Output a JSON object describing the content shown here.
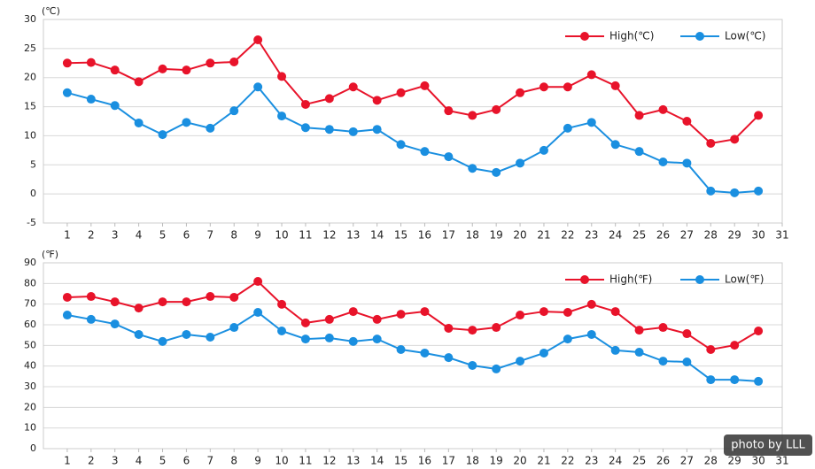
{
  "chart_data": [
    {
      "type": "line",
      "unit_label": "(℃)",
      "x": [
        1,
        2,
        3,
        4,
        5,
        6,
        7,
        8,
        9,
        10,
        11,
        12,
        13,
        14,
        15,
        16,
        17,
        18,
        19,
        20,
        21,
        22,
        23,
        24,
        25,
        26,
        27,
        28,
        29,
        30
      ],
      "xlim": [
        0,
        31
      ],
      "xticks": [
        1,
        2,
        3,
        4,
        5,
        6,
        7,
        8,
        9,
        10,
        11,
        12,
        13,
        14,
        15,
        16,
        17,
        18,
        19,
        20,
        21,
        22,
        23,
        24,
        25,
        26,
        27,
        28,
        29,
        30,
        31
      ],
      "ylim": [
        -5,
        30
      ],
      "yticks": [
        -5,
        0,
        5,
        10,
        15,
        20,
        25,
        30
      ],
      "grid": true,
      "legend": "top-right",
      "series": [
        {
          "name": "High(℃)",
          "color": "#e8132a",
          "values": [
            22.5,
            22.6,
            21.3,
            19.3,
            21.5,
            21.3,
            22.5,
            22.7,
            26.5,
            20.2,
            15.4,
            16.4,
            18.4,
            16.1,
            17.4,
            18.6,
            14.3,
            13.5,
            14.5,
            17.4,
            18.4,
            18.4,
            20.5,
            18.6,
            13.5,
            14.5,
            12.5,
            8.7,
            9.4,
            13.5
          ]
        },
        {
          "name": "Low(℃)",
          "color": "#1a8fe0",
          "values": [
            17.4,
            16.3,
            15.2,
            12.2,
            10.2,
            12.3,
            11.3,
            14.3,
            18.4,
            13.4,
            11.4,
            11.1,
            10.7,
            11.1,
            8.5,
            7.3,
            6.4,
            4.4,
            3.7,
            5.3,
            7.5,
            11.3,
            12.3,
            8.5,
            7.3,
            5.5,
            5.3,
            0.5,
            0.2,
            0.5
          ]
        }
      ]
    },
    {
      "type": "line",
      "unit_label": "(℉)",
      "x": [
        1,
        2,
        3,
        4,
        5,
        6,
        7,
        8,
        9,
        10,
        11,
        12,
        13,
        14,
        15,
        16,
        17,
        18,
        19,
        20,
        21,
        22,
        23,
        24,
        25,
        26,
        27,
        28,
        29,
        30
      ],
      "xlim": [
        0,
        31
      ],
      "xticks": [
        1,
        2,
        3,
        4,
        5,
        6,
        7,
        8,
        9,
        10,
        11,
        12,
        13,
        14,
        15,
        16,
        17,
        18,
        19,
        20,
        21,
        22,
        23,
        24,
        25,
        26,
        27,
        28,
        29,
        30,
        31
      ],
      "ylim": [
        0,
        90
      ],
      "yticks": [
        0,
        10,
        20,
        30,
        40,
        50,
        60,
        70,
        80,
        90
      ],
      "grid": true,
      "legend": "top-right",
      "series": [
        {
          "name": "High(℉)",
          "color": "#e8132a",
          "values": [
            73.3,
            73.7,
            71.1,
            68.1,
            71.1,
            71.1,
            73.7,
            73.3,
            81,
            69.9,
            60.9,
            62.6,
            66.4,
            62.6,
            65.1,
            66.4,
            58.3,
            57.4,
            58.7,
            64.7,
            66.4,
            66,
            69.9,
            66.4,
            57.4,
            58.7,
            55.7,
            48,
            50.1,
            57
          ]
        },
        {
          "name": "Low(℉)",
          "color": "#1a8fe0",
          "values": [
            64.7,
            62.6,
            60.4,
            55.3,
            51.9,
            55.3,
            54,
            58.7,
            66,
            57,
            53.1,
            53.6,
            51.9,
            53.1,
            48,
            46.3,
            44.1,
            40.3,
            38.6,
            42.4,
            46.3,
            53.1,
            55.3,
            47.6,
            46.7,
            42.4,
            42,
            33.4,
            33.4,
            32.6
          ]
        }
      ]
    }
  ],
  "watermark": "photo by LLL"
}
